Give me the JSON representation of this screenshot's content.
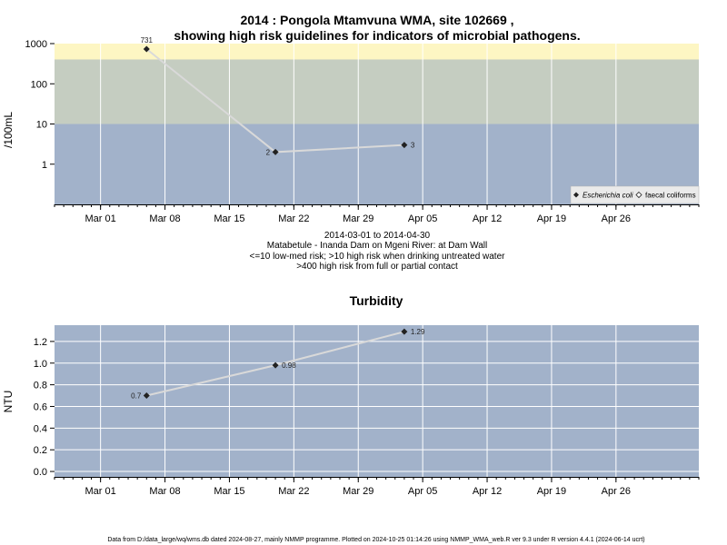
{
  "chart_data": [
    {
      "type": "line",
      "title_line1": "2014 : Pongola Mtamvuna WMA, site 102669 ,",
      "title_line2": "showing high risk guidelines for indicators of microbial pathogens.",
      "ylabel": "/100mL",
      "yscale": "log",
      "ylim": [
        0.1,
        1000
      ],
      "yticks": [
        "1000",
        "100",
        "10",
        "1"
      ],
      "xlim": [
        "2014-02-24",
        "2014-05-05"
      ],
      "xticks": [
        "Mar 01",
        "Mar 08",
        "Mar 15",
        "Mar 22",
        "Mar 29",
        "Apr 05",
        "Apr 12",
        "Apr 19",
        "Apr 26"
      ],
      "risk_bands": [
        {
          "from": 400,
          "to": 1000,
          "color": "#fdf6c3"
        },
        {
          "from": 10,
          "to": 400,
          "color": "#c5cdc1"
        },
        {
          "from": 0.1,
          "to": 10,
          "color": "#a2b2ca"
        }
      ],
      "series": [
        {
          "name": "Escherichia coli",
          "x": [
            "2014-03-06",
            "2014-03-20",
            "2014-04-03"
          ],
          "values": [
            731,
            2,
            3
          ],
          "labels": [
            "731",
            "2",
            "3"
          ],
          "marker": "diamond-filled"
        }
      ],
      "legend": {
        "position": "bottom-right",
        "entries": [
          {
            "label": "Escherichia coli",
            "italic": true,
            "marker": "diamond-filled"
          },
          {
            "label": "faecal coliforms",
            "italic": false,
            "marker": "diamond-open"
          }
        ]
      },
      "subtitles": [
        "2014-03-01 to 2014-04-30",
        "Matabetule - Inanda Dam on Mgeni River: at Dam Wall",
        "<=10 low-med risk; >10 high risk when drinking untreated water",
        ">400 high risk from full or partial contact"
      ],
      "grid": true,
      "background": "#a2b2ca"
    },
    {
      "type": "line",
      "title": "Turbidity",
      "ylabel": "NTU",
      "ylim": [
        -0.05,
        1.35
      ],
      "yticks": [
        "0.0",
        "0.2",
        "0.4",
        "0.6",
        "0.8",
        "1.0",
        "1.2"
      ],
      "ytick_values": [
        0,
        0.2,
        0.4,
        0.6,
        0.8,
        1.0,
        1.2
      ],
      "xlim": [
        "2014-02-24",
        "2014-05-05"
      ],
      "xticks": [
        "Mar 01",
        "Mar 08",
        "Mar 15",
        "Mar 22",
        "Mar 29",
        "Apr 05",
        "Apr 12",
        "Apr 19",
        "Apr 26"
      ],
      "series": [
        {
          "x": [
            "2014-03-06",
            "2014-03-20",
            "2014-04-03"
          ],
          "values": [
            0.7,
            0.98,
            1.29
          ],
          "labels": [
            "0.7",
            "0.98",
            "1.29"
          ],
          "marker": "diamond-filled"
        }
      ],
      "grid": true,
      "background": "#a2b2ca"
    }
  ],
  "footer": "Data from D:/data_large/wq/wms.db dated 2024-08-27, mainly NMMP programme. Plotted on 2024-10-25 01:14:26 using NMMP_WMA_web.R ver 9.3 under R version 4.4.1 (2024-06-14 ucrt)"
}
